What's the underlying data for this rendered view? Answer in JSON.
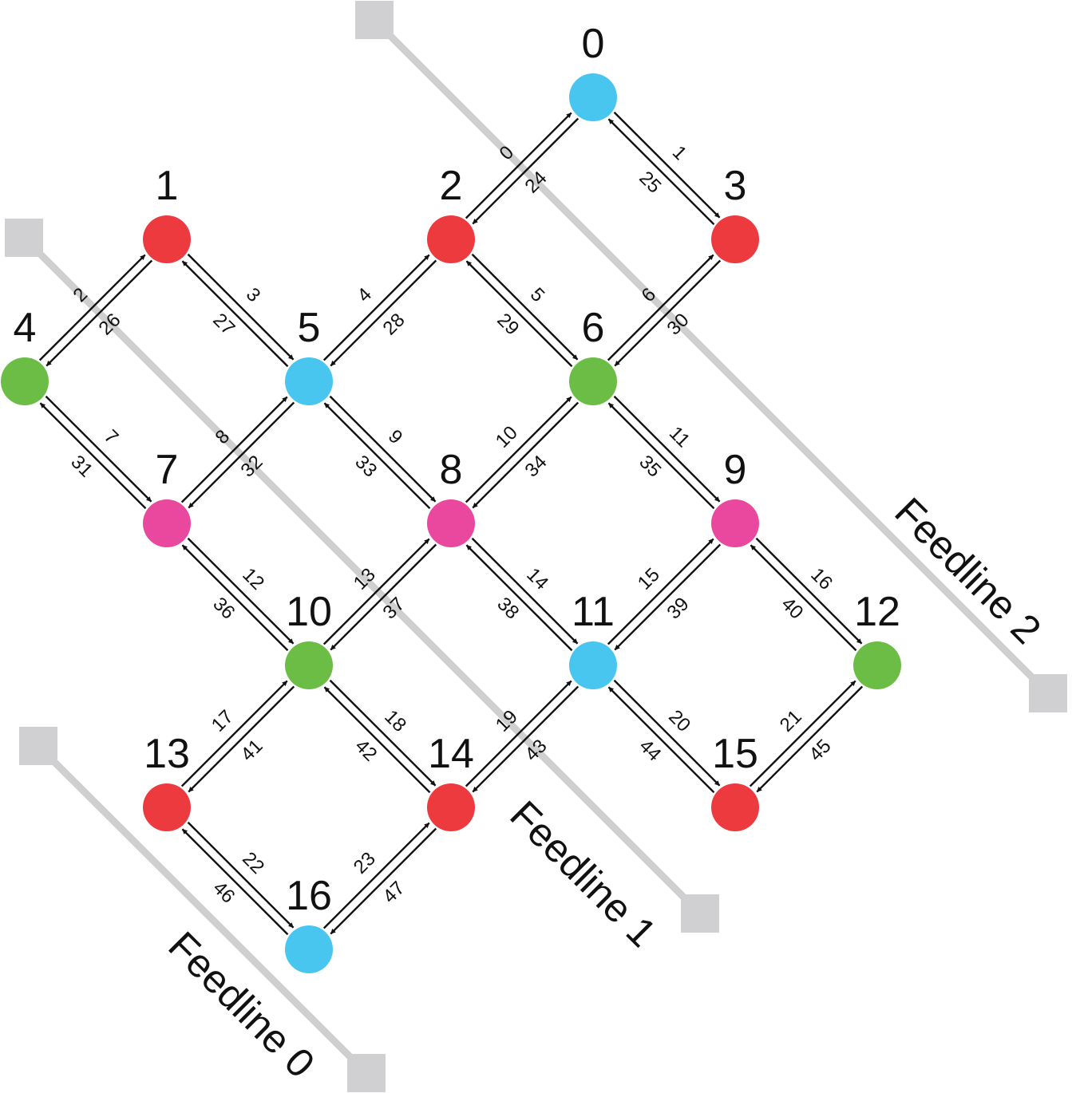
{
  "colors": {
    "red": "#ec3a3f",
    "blue": "#48c6f0",
    "green": "#6bbd45",
    "pink": "#e9489e",
    "feedline": "#cfcfd0"
  },
  "nodes": [
    {
      "id": "0",
      "color": "blue"
    },
    {
      "id": "1",
      "color": "red"
    },
    {
      "id": "2",
      "color": "red"
    },
    {
      "id": "3",
      "color": "red"
    },
    {
      "id": "4",
      "color": "green"
    },
    {
      "id": "5",
      "color": "blue"
    },
    {
      "id": "6",
      "color": "green"
    },
    {
      "id": "7",
      "color": "pink"
    },
    {
      "id": "8",
      "color": "pink"
    },
    {
      "id": "9",
      "color": "pink"
    },
    {
      "id": "10",
      "color": "green"
    },
    {
      "id": "11",
      "color": "blue"
    },
    {
      "id": "12",
      "color": "green"
    },
    {
      "id": "13",
      "color": "red"
    },
    {
      "id": "14",
      "color": "red"
    },
    {
      "id": "15",
      "color": "red"
    },
    {
      "id": "16",
      "color": "blue"
    }
  ],
  "edges": [
    {
      "from": "2",
      "to": "0",
      "forward": "0",
      "reverse": "24"
    },
    {
      "from": "0",
      "to": "3",
      "forward": "1",
      "reverse": "25"
    },
    {
      "from": "4",
      "to": "1",
      "forward": "2",
      "reverse": "26"
    },
    {
      "from": "1",
      "to": "5",
      "forward": "3",
      "reverse": "27"
    },
    {
      "from": "5",
      "to": "2",
      "forward": "4",
      "reverse": "28"
    },
    {
      "from": "2",
      "to": "6",
      "forward": "5",
      "reverse": "29"
    },
    {
      "from": "6",
      "to": "3",
      "forward": "6",
      "reverse": "30"
    },
    {
      "from": "4",
      "to": "7",
      "forward": "7",
      "reverse": "31"
    },
    {
      "from": "7",
      "to": "5",
      "forward": "8",
      "reverse": "32"
    },
    {
      "from": "5",
      "to": "8",
      "forward": "9",
      "reverse": "33"
    },
    {
      "from": "8",
      "to": "6",
      "forward": "10",
      "reverse": "34"
    },
    {
      "from": "6",
      "to": "9",
      "forward": "11",
      "reverse": "35"
    },
    {
      "from": "7",
      "to": "10",
      "forward": "12",
      "reverse": "36"
    },
    {
      "from": "10",
      "to": "8",
      "forward": "13",
      "reverse": "37"
    },
    {
      "from": "8",
      "to": "11",
      "forward": "14",
      "reverse": "38"
    },
    {
      "from": "11",
      "to": "9",
      "forward": "15",
      "reverse": "39"
    },
    {
      "from": "9",
      "to": "12",
      "forward": "16",
      "reverse": "40"
    },
    {
      "from": "13",
      "to": "10",
      "forward": "17",
      "reverse": "41"
    },
    {
      "from": "10",
      "to": "14",
      "forward": "18",
      "reverse": "42"
    },
    {
      "from": "14",
      "to": "11",
      "forward": "19",
      "reverse": "43"
    },
    {
      "from": "11",
      "to": "15",
      "forward": "20",
      "reverse": "44"
    },
    {
      "from": "15",
      "to": "12",
      "forward": "21",
      "reverse": "45"
    },
    {
      "from": "13",
      "to": "16",
      "forward": "22",
      "reverse": "46"
    },
    {
      "from": "16",
      "to": "14",
      "forward": "23",
      "reverse": "47"
    }
  ],
  "feedlines": [
    {
      "name": "Feedline 0"
    },
    {
      "name": "Feedline 1"
    },
    {
      "name": "Feedline 2"
    }
  ]
}
